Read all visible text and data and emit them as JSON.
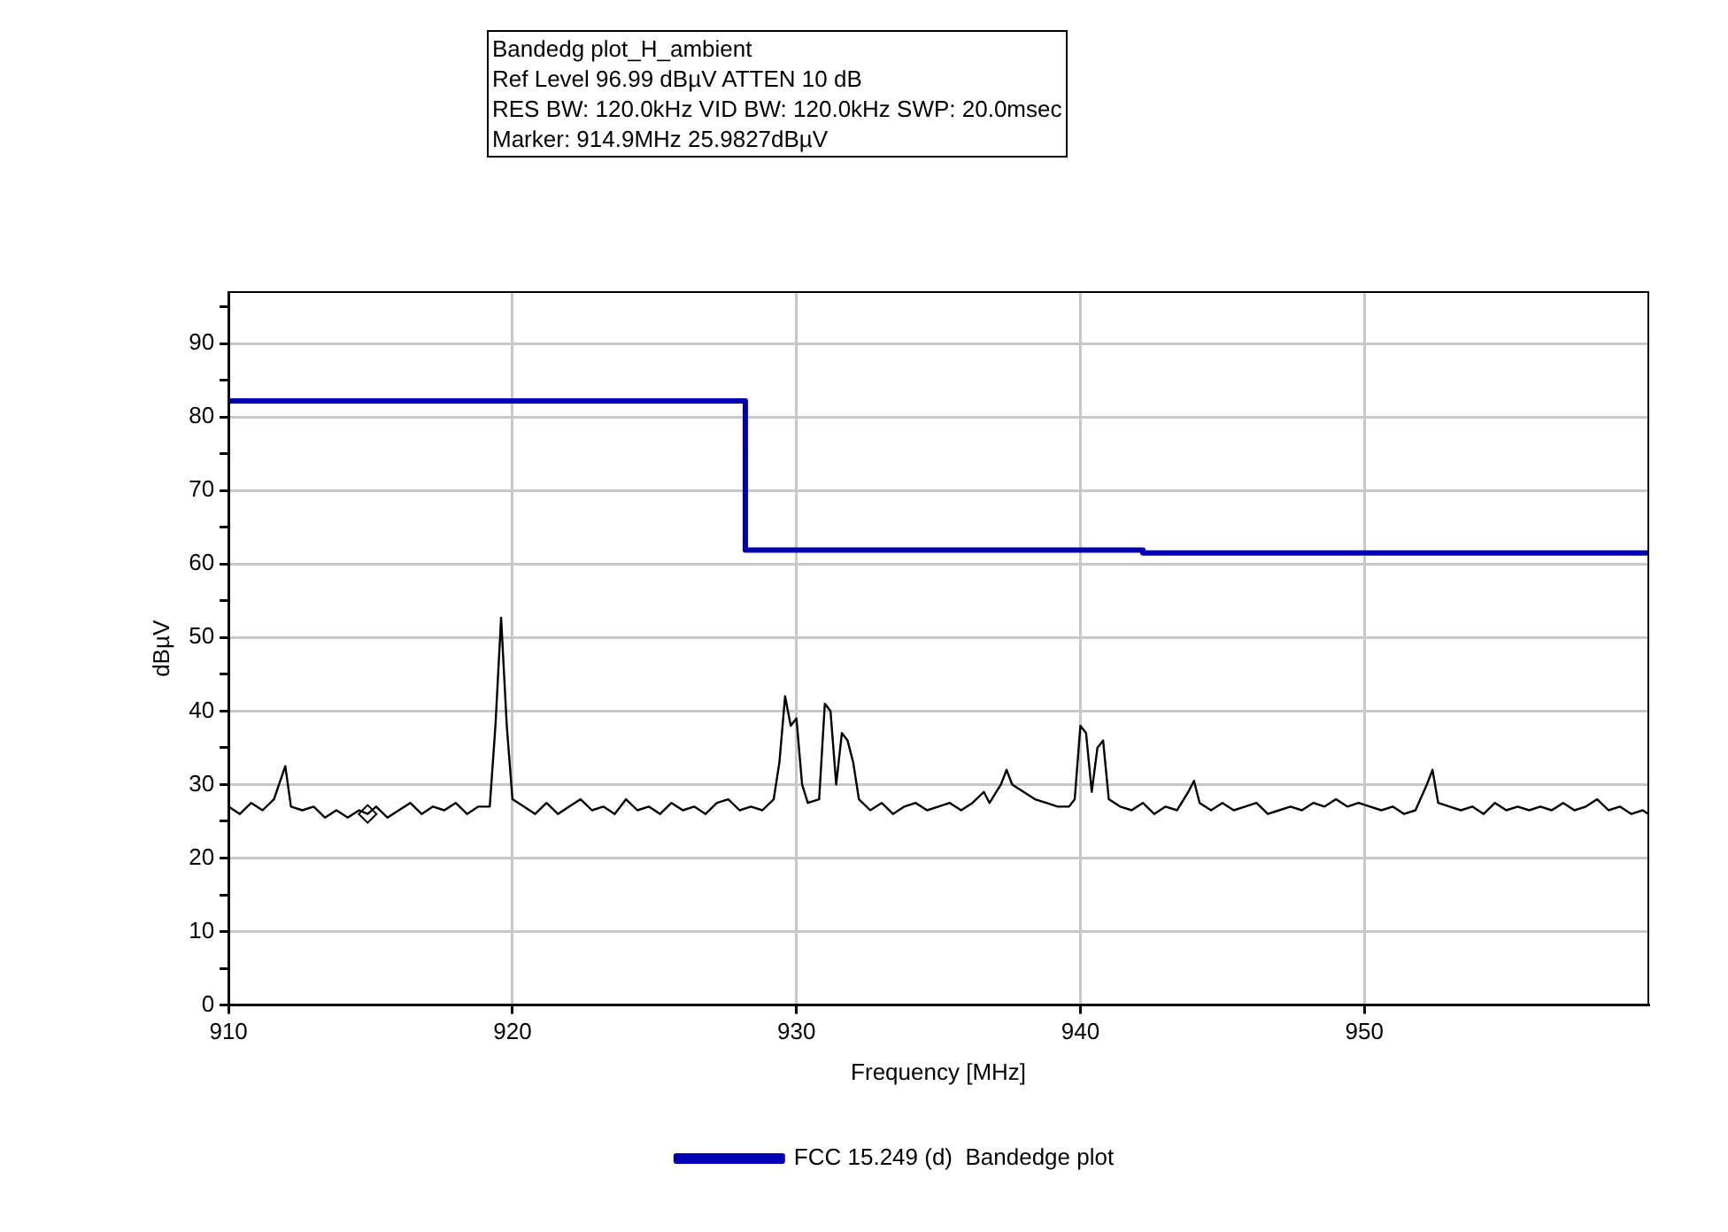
{
  "chart_data": {
    "type": "line",
    "title": "Bandedg plot_H_ambient",
    "annotations": [
      "Ref Level 96.99 dBµV    ATTEN 10 dB",
      "RES BW: 120.0kHz  VID BW: 120.0kHz  SWP: 20.0msec",
      "Marker: 914.9MHz  25.9827dBµV"
    ],
    "xlabel": "Frequency [MHz]",
    "ylabel": "dBµV",
    "xlim": [
      910,
      960
    ],
    "xticks": [
      910,
      920,
      930,
      940,
      950
    ],
    "ylim": [
      0,
      97
    ],
    "yticks": [
      0,
      {
        "value": 5,
        "label": null
      },
      10,
      {
        "value": 15,
        "label": null
      },
      20,
      {
        "value": 25,
        "label": null
      },
      30,
      {
        "value": 35,
        "label": null
      },
      40,
      {
        "value": 45,
        "label": null
      },
      50,
      {
        "value": 55,
        "label": null
      },
      60,
      {
        "value": 65,
        "label": null
      },
      70,
      {
        "value": 75,
        "label": null
      },
      80,
      {
        "value": 85,
        "label": null
      },
      90,
      {
        "value": 95,
        "label": null
      }
    ],
    "grid": true,
    "legend": "bottom",
    "marker": "none",
    "line_style": "solid",
    "series": [
      {
        "name": "FCC 15.249 (d)  Bandedge plot",
        "type": "step",
        "color": "#0000b0",
        "x": [
          910,
          928.2,
          942.2,
          960
        ],
        "values": [
          82.2,
          61.9,
          61.5,
          61.5
        ]
      },
      {
        "type": "line",
        "color": "#000000",
        "x": [
          910.0,
          910.4,
          910.8,
          911.2,
          911.6,
          912.0,
          912.2,
          912.6,
          913.0,
          913.4,
          913.8,
          914.2,
          914.6,
          914.9,
          915.2,
          915.6,
          916.0,
          916.4,
          916.8,
          917.2,
          917.6,
          918.0,
          918.4,
          918.8,
          919.2,
          919.4,
          919.6,
          919.8,
          920.0,
          920.4,
          920.8,
          921.2,
          921.6,
          922.0,
          922.4,
          922.8,
          923.2,
          923.6,
          924.0,
          924.4,
          924.8,
          925.2,
          925.6,
          926.0,
          926.4,
          926.8,
          927.2,
          927.6,
          928.0,
          928.4,
          928.8,
          929.2,
          929.4,
          929.6,
          929.8,
          930.0,
          930.2,
          930.4,
          930.8,
          931.0,
          931.2,
          931.4,
          931.6,
          931.8,
          932.0,
          932.2,
          932.6,
          933.0,
          933.4,
          933.8,
          934.2,
          934.6,
          935.0,
          935.4,
          935.8,
          936.2,
          936.6,
          936.8,
          937.2,
          937.4,
          937.6,
          938.0,
          938.4,
          938.8,
          939.2,
          939.6,
          939.8,
          940.0,
          940.2,
          940.4,
          940.6,
          940.8,
          941.0,
          941.4,
          941.8,
          942.2,
          942.6,
          943.0,
          943.4,
          943.8,
          944.0,
          944.2,
          944.6,
          945.0,
          945.4,
          945.8,
          946.2,
          946.6,
          947.0,
          947.4,
          947.8,
          948.2,
          948.6,
          949.0,
          949.4,
          949.8,
          950.2,
          950.6,
          951.0,
          951.4,
          951.8,
          952.2,
          952.4,
          952.6,
          953.0,
          953.4,
          953.8,
          954.2,
          954.6,
          955.0,
          955.4,
          955.8,
          956.2,
          956.6,
          957.0,
          957.4,
          957.8,
          958.2,
          958.6,
          959.0,
          959.4,
          959.8,
          960.0
        ],
        "values": [
          27,
          26,
          27.5,
          26.5,
          28,
          32.5,
          27,
          26.5,
          27,
          25.5,
          26.5,
          25.5,
          26.5,
          26,
          27,
          25.5,
          26.5,
          27.5,
          26,
          27,
          26.5,
          27.5,
          26,
          27,
          27,
          38,
          52.7,
          38,
          28,
          27,
          26,
          27.5,
          26,
          27,
          28,
          26.5,
          27,
          26,
          28,
          26.5,
          27,
          26,
          27.5,
          26.5,
          27,
          26,
          27.5,
          28,
          26.5,
          27,
          26.5,
          28,
          33,
          42,
          38,
          39,
          30,
          27.5,
          28,
          41,
          40,
          30,
          37,
          36,
          33,
          28,
          26.5,
          27.5,
          26,
          27,
          27.5,
          26.5,
          27,
          27.5,
          26.5,
          27.5,
          29,
          27.5,
          30,
          32,
          30,
          29,
          28,
          27.5,
          27,
          27,
          28,
          38,
          37,
          29,
          35,
          36,
          28,
          27,
          26.5,
          27.5,
          26,
          27,
          26.5,
          29,
          30.5,
          27.5,
          26.5,
          27.5,
          26.5,
          27,
          27.5,
          26,
          26.5,
          27,
          26.5,
          27.5,
          27,
          28,
          27,
          27.5,
          27,
          26.5,
          27,
          26,
          26.5,
          30,
          32,
          27.5,
          27,
          26.5,
          27,
          26,
          27.5,
          26.5,
          27,
          26.5,
          27,
          26.5,
          27.5,
          26.5,
          27,
          28,
          26.5,
          27,
          26,
          26.5,
          26
        ]
      },
      {
        "type": "scatter",
        "marker": "diamond",
        "color": "#000000",
        "x": [
          914.9
        ],
        "values": [
          26
        ]
      }
    ]
  }
}
